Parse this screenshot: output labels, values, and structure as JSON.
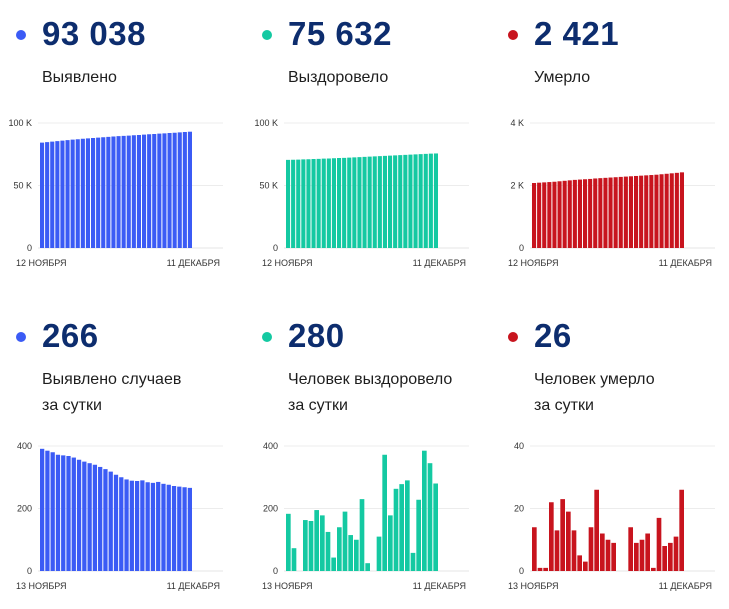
{
  "panels": [
    {
      "value": "93 038",
      "label_lines": [
        "Выявлено"
      ],
      "color": "#3b5bf5",
      "chart_data": {
        "type": "bar",
        "x_start_label": "12 НОЯБРЯ",
        "x_end_label": "11 ДЕКАБРЯ",
        "yticks": [
          0,
          50000,
          100000
        ],
        "ytick_labels": [
          "0",
          "50 K",
          "100 K"
        ],
        "ylim": [
          0,
          100000
        ],
        "values": [
          84300,
          84700,
          85100,
          85500,
          85900,
          86300,
          86700,
          87000,
          87400,
          87700,
          88000,
          88300,
          88600,
          88900,
          89200,
          89500,
          89700,
          89900,
          90200,
          90400,
          90700,
          91000,
          91200,
          91500,
          91700,
          92000,
          92200,
          92500,
          92800,
          93038
        ]
      }
    },
    {
      "value": "75 632",
      "label_lines": [
        "Выздоровело"
      ],
      "color": "#14c9a2",
      "chart_data": {
        "type": "bar",
        "x_start_label": "12 НОЯБРЯ",
        "x_end_label": "11 ДЕКАБРЯ",
        "yticks": [
          0,
          50000,
          100000
        ],
        "ytick_labels": [
          "0",
          "50 K",
          "100 K"
        ],
        "ylim": [
          0,
          100000
        ],
        "values": [
          70500,
          70600,
          70700,
          70900,
          71000,
          71200,
          71300,
          71500,
          71600,
          71800,
          72000,
          72100,
          72300,
          72500,
          72700,
          72900,
          73100,
          73300,
          73500,
          73700,
          73900,
          74100,
          74300,
          74500,
          74700,
          74900,
          75100,
          75300,
          75500,
          75632
        ]
      }
    },
    {
      "value": "2 421",
      "label_lines": [
        "Умерло"
      ],
      "color": "#c8141e",
      "chart_data": {
        "type": "bar",
        "x_start_label": "12 НОЯБРЯ",
        "x_end_label": "11 ДЕКАБРЯ",
        "yticks": [
          0,
          2000,
          4000
        ],
        "ytick_labels": [
          "0",
          "2 K",
          "4 K"
        ],
        "ylim": [
          0,
          4000
        ],
        "values": [
          2080,
          2090,
          2100,
          2110,
          2120,
          2135,
          2150,
          2165,
          2180,
          2190,
          2200,
          2210,
          2225,
          2235,
          2245,
          2255,
          2265,
          2275,
          2285,
          2295,
          2305,
          2315,
          2325,
          2335,
          2345,
          2360,
          2375,
          2390,
          2405,
          2421
        ]
      }
    },
    {
      "value": "266",
      "label_lines": [
        "Выявлено случаев",
        "за сутки"
      ],
      "color": "#3b5bf5",
      "chart_data": {
        "type": "bar",
        "x_start_label": "13 НОЯБРЯ",
        "x_end_label": "11 ДЕКАБРЯ",
        "yticks": [
          0,
          200,
          400
        ],
        "ytick_labels": [
          "0",
          "200",
          "400"
        ],
        "ylim": [
          0,
          400
        ],
        "values": [
          391,
          385,
          380,
          372,
          370,
          368,
          363,
          356,
          350,
          345,
          340,
          333,
          326,
          318,
          308,
          300,
          293,
          289,
          288,
          290,
          284,
          282,
          285,
          279,
          276,
          272,
          270,
          268,
          266
        ]
      }
    },
    {
      "value": "280",
      "label_lines": [
        "Человек выздоровело",
        "за сутки"
      ],
      "color": "#14c9a2",
      "chart_data": {
        "type": "bar",
        "x_start_label": "13 НОЯБРЯ",
        "x_end_label": "11 ДЕКАБРЯ",
        "yticks": [
          0,
          200,
          400
        ],
        "ytick_labels": [
          "0",
          "200",
          "400"
        ],
        "ylim": [
          0,
          400
        ],
        "values": [
          183,
          73,
          0,
          163,
          160,
          195,
          178,
          125,
          43,
          140,
          190,
          115,
          100,
          230,
          25,
          0,
          110,
          372,
          178,
          263,
          278,
          290,
          58,
          228,
          385,
          345,
          280
        ]
      }
    },
    {
      "value": "26",
      "label_lines": [
        "Человек умерло",
        "за сутки"
      ],
      "color": "#c8141e",
      "chart_data": {
        "type": "bar",
        "x_start_label": "13 НОЯБРЯ",
        "x_end_label": "11 ДЕКАБРЯ",
        "yticks": [
          0,
          20,
          40
        ],
        "ytick_labels": [
          "0",
          "20",
          "40"
        ],
        "ylim": [
          0,
          40
        ],
        "values": [
          14,
          1,
          1,
          22,
          13,
          23,
          19,
          13,
          5,
          3,
          14,
          26,
          12,
          10,
          9,
          0,
          0,
          14,
          9,
          10,
          12,
          1,
          17,
          8,
          9,
          11,
          26
        ]
      }
    }
  ]
}
